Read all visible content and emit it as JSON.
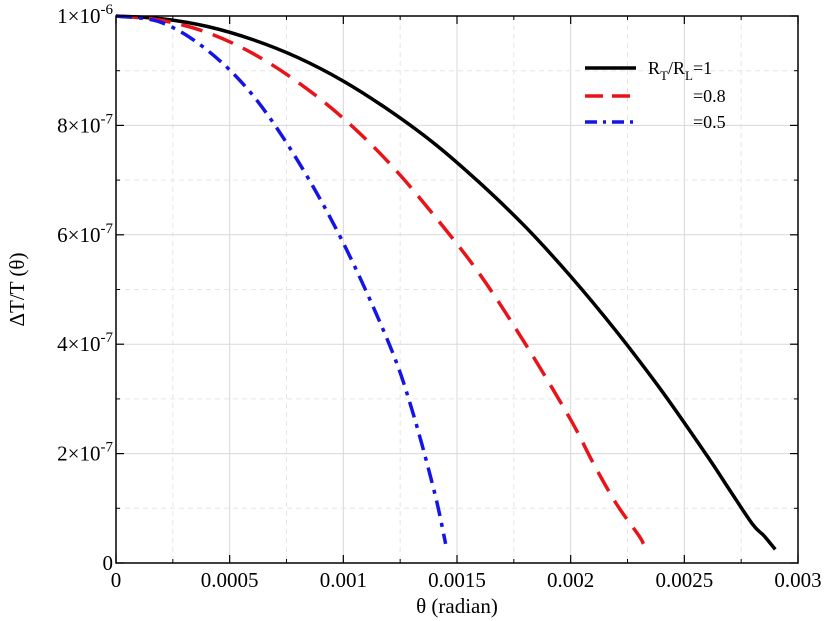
{
  "chart_data": {
    "type": "line",
    "xlabel": "θ (radian)",
    "ylabel": "ΔT/T (θ)",
    "xlim": [
      0,
      0.003
    ],
    "ylim": [
      0,
      1e-06
    ],
    "grid": true,
    "legend_position": "top-right",
    "x_ticks": [
      {
        "value": 0,
        "label": "0"
      },
      {
        "value": 0.0005,
        "label": "0.0005"
      },
      {
        "value": 0.001,
        "label": "0.001"
      },
      {
        "value": 0.0015,
        "label": "0.0015"
      },
      {
        "value": 0.002,
        "label": "0.002"
      },
      {
        "value": 0.0025,
        "label": "0.0025"
      },
      {
        "value": 0.003,
        "label": "0.003"
      }
    ],
    "y_ticks": [
      {
        "value": 0,
        "mantissa": "0",
        "exponent": ""
      },
      {
        "value": 2e-07,
        "mantissa": "2×10",
        "exponent": "-7"
      },
      {
        "value": 4e-07,
        "mantissa": "4×10",
        "exponent": "-7"
      },
      {
        "value": 6e-07,
        "mantissa": "6×10",
        "exponent": "-7"
      },
      {
        "value": 8e-07,
        "mantissa": "8×10",
        "exponent": "-7"
      },
      {
        "value": 1e-06,
        "mantissa": "1×10",
        "exponent": "-6"
      }
    ],
    "series": [
      {
        "legend": [
          {
            "t": "R"
          },
          {
            "t": "T",
            "sub": true
          },
          {
            "t": "/R"
          },
          {
            "t": "L",
            "sub": true
          },
          {
            "t": "=1"
          }
        ],
        "color": "#000000",
        "dash": "solid",
        "x": [
          0,
          0.0002,
          0.0004,
          0.0006,
          0.0008,
          0.001,
          0.0012,
          0.0014,
          0.0016,
          0.0018,
          0.002,
          0.0022,
          0.0024,
          0.0026,
          0.0027,
          0.0028,
          0.00285,
          0.00288,
          0.0029
        ],
        "y": [
          1e-06,
          9.95e-07,
          9.81e-07,
          9.57e-07,
          9.24e-07,
          8.81e-07,
          8.28e-07,
          7.67e-07,
          6.95e-07,
          6.15e-07,
          5.24e-07,
          4.24e-07,
          3.15e-07,
          1.96e-07,
          1.33e-07,
          7.1e-08,
          5e-08,
          3.5e-08,
          2.5e-08
        ]
      },
      {
        "legend": [
          {
            "t": "=0.8"
          }
        ],
        "color": "#e8141a",
        "dash": "dashed",
        "x": [
          0,
          0.0002,
          0.0004,
          0.0006,
          0.0008,
          0.001,
          0.0012,
          0.0014,
          0.0016,
          0.0018,
          0.002,
          0.0021,
          0.0022,
          0.0023,
          0.00232
        ],
        "y": [
          1e-06,
          9.92e-07,
          9.7e-07,
          9.32e-07,
          8.79e-07,
          8.13e-07,
          7.32e-07,
          6.35e-07,
          5.28e-07,
          4.01e-07,
          2.62e-07,
          1.82e-07,
          1.09e-07,
          5e-08,
          3.5e-08
        ]
      },
      {
        "legend": [
          {
            "t": "=0.5"
          }
        ],
        "color": "#1414e6",
        "dash": "dashdot",
        "x": [
          0,
          0.0002,
          0.0004,
          0.0006,
          0.0008,
          0.001,
          0.0012,
          0.0013,
          0.0014,
          0.00145
        ],
        "y": [
          1e-06,
          9.88e-07,
          9.38e-07,
          8.56e-07,
          7.35e-07,
          5.85e-07,
          4.02e-07,
          2.83e-07,
          1.31e-07,
          3.5e-08
        ]
      }
    ]
  }
}
